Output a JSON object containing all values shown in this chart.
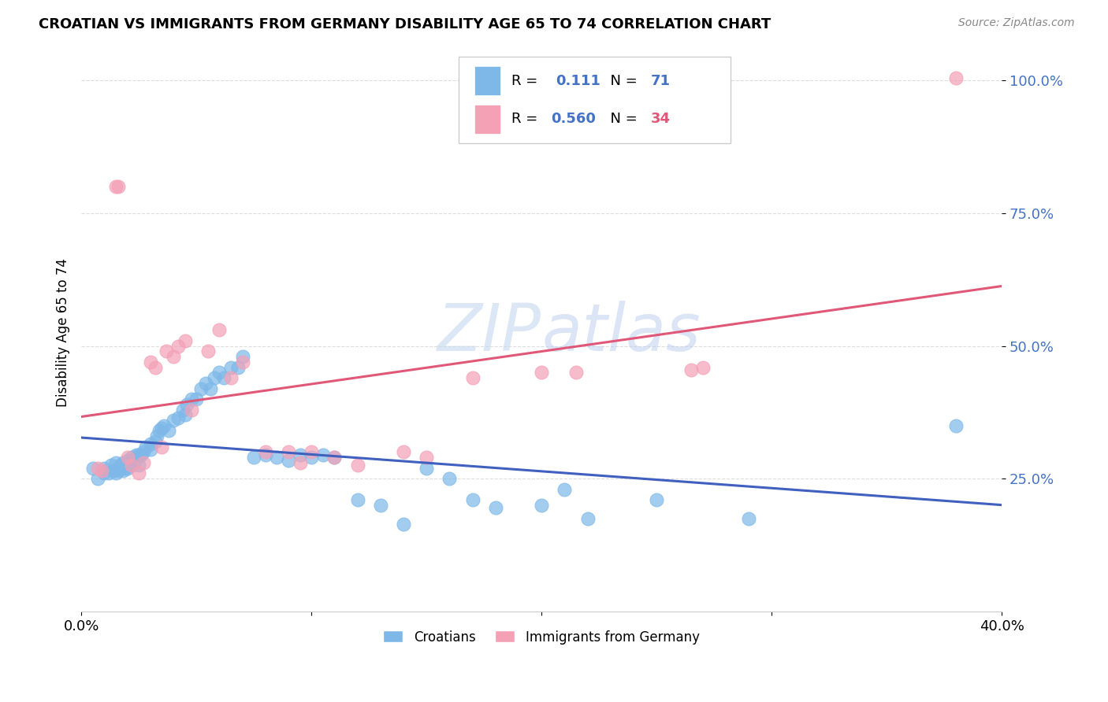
{
  "title": "CROATIAN VS IMMIGRANTS FROM GERMANY DISABILITY AGE 65 TO 74 CORRELATION CHART",
  "source": "Source: ZipAtlas.com",
  "ylabel": "Disability Age 65 to 74",
  "xmin": 0.0,
  "xmax": 0.4,
  "ymin": 0.0,
  "ymax": 1.05,
  "xticks": [
    0.0,
    0.1,
    0.2,
    0.3,
    0.4
  ],
  "xtick_labels": [
    "0.0%",
    "",
    "",
    "",
    "40.0%"
  ],
  "ytick_labels": [
    "25.0%",
    "50.0%",
    "75.0%",
    "100.0%"
  ],
  "ytick_values": [
    0.25,
    0.5,
    0.75,
    1.0
  ],
  "croatians_R": 0.111,
  "croatians_N": 71,
  "immigrants_R": 0.56,
  "immigrants_N": 34,
  "blue_color": "#7db8e8",
  "pink_color": "#f4a0b5",
  "blue_line_color": "#4060c0",
  "pink_line_color": "#e05878",
  "watermark_color": "#c5d8f0",
  "background_color": "#ffffff",
  "grid_color": "#dddddd",
  "croatians_x": [
    0.005,
    0.007,
    0.01,
    0.01,
    0.012,
    0.013,
    0.014,
    0.015,
    0.015,
    0.016,
    0.017,
    0.018,
    0.018,
    0.019,
    0.02,
    0.02,
    0.021,
    0.022,
    0.022,
    0.023,
    0.024,
    0.025,
    0.025,
    0.026,
    0.027,
    0.028,
    0.03,
    0.03,
    0.032,
    0.033,
    0.034,
    0.035,
    0.036,
    0.038,
    0.04,
    0.042,
    0.044,
    0.045,
    0.046,
    0.048,
    0.05,
    0.052,
    0.054,
    0.056,
    0.058,
    0.06,
    0.062,
    0.065,
    0.068,
    0.07,
    0.075,
    0.08,
    0.085,
    0.09,
    0.095,
    0.1,
    0.105,
    0.11,
    0.12,
    0.13,
    0.14,
    0.15,
    0.16,
    0.17,
    0.18,
    0.2,
    0.21,
    0.22,
    0.25,
    0.29,
    0.38
  ],
  "croatians_y": [
    0.27,
    0.25,
    0.27,
    0.26,
    0.26,
    0.275,
    0.265,
    0.28,
    0.26,
    0.265,
    0.275,
    0.28,
    0.265,
    0.27,
    0.285,
    0.27,
    0.28,
    0.29,
    0.275,
    0.28,
    0.295,
    0.295,
    0.275,
    0.295,
    0.3,
    0.31,
    0.315,
    0.305,
    0.32,
    0.33,
    0.34,
    0.345,
    0.35,
    0.34,
    0.36,
    0.365,
    0.38,
    0.37,
    0.39,
    0.4,
    0.4,
    0.42,
    0.43,
    0.42,
    0.44,
    0.45,
    0.44,
    0.46,
    0.46,
    0.48,
    0.29,
    0.295,
    0.29,
    0.285,
    0.295,
    0.29,
    0.295,
    0.29,
    0.21,
    0.2,
    0.165,
    0.27,
    0.25,
    0.21,
    0.195,
    0.2,
    0.23,
    0.175,
    0.21,
    0.175,
    0.35
  ],
  "immigrants_x": [
    0.007,
    0.009,
    0.015,
    0.016,
    0.02,
    0.022,
    0.025,
    0.027,
    0.03,
    0.032,
    0.035,
    0.037,
    0.04,
    0.042,
    0.045,
    0.048,
    0.055,
    0.06,
    0.065,
    0.07,
    0.08,
    0.09,
    0.095,
    0.1,
    0.11,
    0.12,
    0.14,
    0.15,
    0.17,
    0.2,
    0.215,
    0.265,
    0.27,
    0.38
  ],
  "immigrants_y": [
    0.27,
    0.265,
    0.8,
    0.8,
    0.29,
    0.275,
    0.26,
    0.28,
    0.47,
    0.46,
    0.31,
    0.49,
    0.48,
    0.5,
    0.51,
    0.38,
    0.49,
    0.53,
    0.44,
    0.47,
    0.3,
    0.3,
    0.28,
    0.3,
    0.29,
    0.275,
    0.3,
    0.29,
    0.44,
    0.45,
    0.45,
    0.455,
    0.46,
    1.005
  ]
}
